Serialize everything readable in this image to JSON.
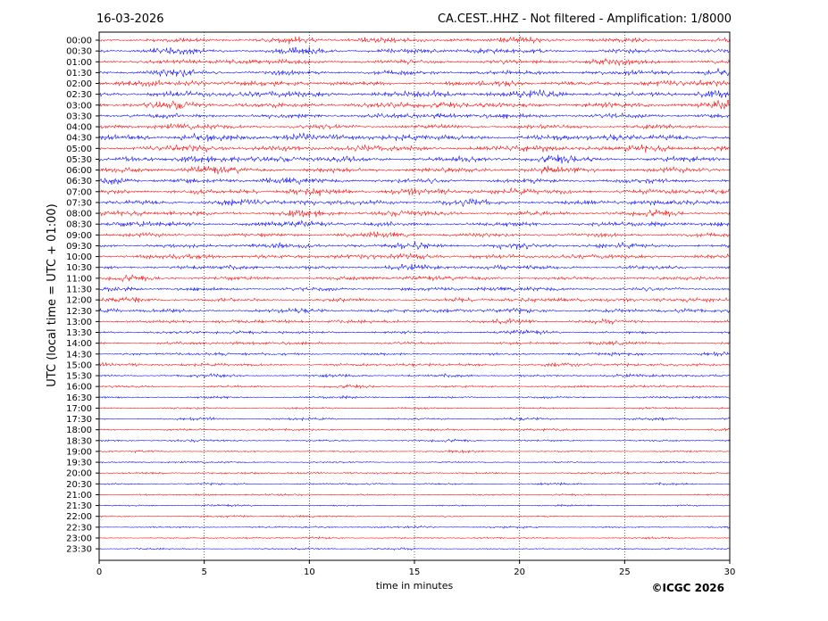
{
  "header": {
    "date": "16-03-2026",
    "station_title": "CA.CEST..HHZ - Not filtered - Amplification: 1/8000"
  },
  "footer": {
    "copyright": "©ICGC 2026"
  },
  "colors": {
    "trace_even": "#ff0000",
    "trace_odd": "#0000ff",
    "frame": "#000000",
    "grid": "#000000"
  },
  "chart_data": {
    "type": "line",
    "chart_kind": "helicorder",
    "xlabel": "time in minutes",
    "ylabel": "UTC (local time = UTC + 01:00)",
    "xlim": [
      0,
      30
    ],
    "x_ticks": [
      "0",
      "5",
      "10",
      "15",
      "20",
      "25",
      "30"
    ],
    "x_tick_values": [
      0,
      5,
      10,
      15,
      20,
      25,
      30
    ],
    "grid_vertical": true,
    "row_labels": [
      "00:00",
      "00:30",
      "01:00",
      "01:30",
      "02:00",
      "02:30",
      "03:00",
      "03:30",
      "04:00",
      "04:30",
      "05:00",
      "05:30",
      "06:00",
      "06:30",
      "07:00",
      "07:30",
      "08:00",
      "08:30",
      "09:00",
      "09:30",
      "10:00",
      "10:30",
      "11:00",
      "11:30",
      "12:00",
      "12:30",
      "13:00",
      "13:30",
      "14:00",
      "14:30",
      "15:00",
      "15:30",
      "16:00",
      "16:30",
      "17:00",
      "17:30",
      "18:00",
      "18:30",
      "19:00",
      "19:30",
      "20:00",
      "20:30",
      "21:00",
      "21:30",
      "22:00",
      "22:30",
      "23:00",
      "23:30"
    ],
    "row_colors": [
      "#ff0000",
      "#0000ff"
    ],
    "relative_amplitude": [
      0.55,
      0.6,
      0.6,
      0.65,
      0.6,
      0.75,
      0.75,
      0.65,
      0.6,
      0.7,
      0.7,
      0.7,
      0.7,
      0.65,
      0.65,
      0.6,
      0.6,
      0.6,
      0.55,
      0.55,
      0.55,
      0.5,
      0.5,
      0.5,
      0.45,
      0.45,
      0.4,
      0.38,
      0.38,
      0.35,
      0.35,
      0.3,
      0.3,
      0.28,
      0.25,
      0.25,
      0.25,
      0.25,
      0.22,
      0.22,
      0.22,
      0.2,
      0.2,
      0.2,
      0.2,
      0.2,
      0.18,
      0.18
    ]
  }
}
